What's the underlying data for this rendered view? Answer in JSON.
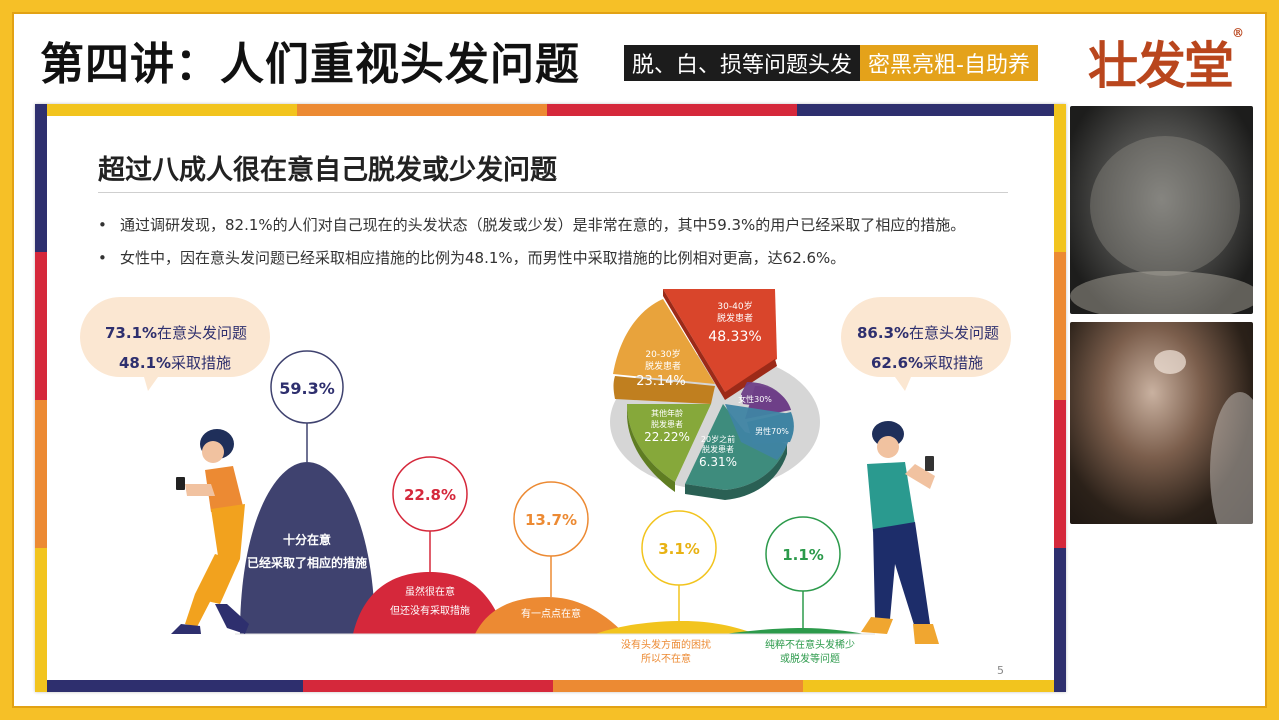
{
  "header": {
    "title": "第四讲：人们重视头发问题",
    "banner_left": "脱、白、损等问题头发",
    "banner_right": "密黑亮粗-自助养",
    "brand": "壮发堂",
    "brand_mark": "®"
  },
  "slide": {
    "title": "超过八成人很在意自己脱发或少发问题",
    "bullets": [
      "通过调研发现，82.1%的人们对自己现在的头发状态（脱发或少发）是非常在意的，其中59.3%的用户已经采取了相应的措施。",
      "女性中，因在意头发问题已经采取相应措施的比例为48.1%，而男性中采取措施的比例相对更高，达62.6%。"
    ],
    "bullet_mark": "•",
    "page_number": "5",
    "female_callout": {
      "line1_value": "73.1%",
      "line1_text": "在意头发问题",
      "line2_value": "48.1%",
      "line2_text": "采取措施"
    },
    "male_callout": {
      "line1_value": "86.3%",
      "line1_text": "在意头发问题",
      "line2_value": "62.6%",
      "line2_text": "采取措施"
    },
    "mounds": [
      {
        "value": "59.3%",
        "label1": "十分在意",
        "label2": "已经采取了相应的措施",
        "color": "#3f426f"
      },
      {
        "value": "22.8%",
        "label1": "虽然很在意",
        "label2": "但还没有采取措施",
        "color": "#d5283b"
      },
      {
        "value": "13.7%",
        "label1": "有一点点在意",
        "label2": "",
        "color": "#ec8a33"
      },
      {
        "value": "3.1%",
        "label1": "没有头发方面的困扰",
        "label2": "所以不在意",
        "color": "#f2c41e"
      },
      {
        "value": "1.1%",
        "label1": "纯粹不在意头发稀少",
        "label2": "或脱发等问题",
        "color": "#2c9a4b"
      }
    ],
    "pie": [
      {
        "line1": "30-40岁",
        "line2": "脱发患者",
        "value": "48.33%",
        "color": "#d9452b"
      },
      {
        "line1": "20-30岁",
        "line2": "脱发患者",
        "value": "23.14%",
        "color": "#e8a33c"
      },
      {
        "line1": "其他年龄",
        "line2": "脱发患者",
        "value": "22.22%",
        "color": "#86a83a"
      },
      {
        "line1": "20岁之前",
        "line2": "脱发患者",
        "value": "6.31%",
        "color": "#3e8c7d"
      },
      {
        "line1": "男性70%",
        "line2": "",
        "value": "",
        "color": "#3f84a3"
      },
      {
        "line1": "女性30%",
        "line2": "",
        "value": "",
        "color": "#6e3f88"
      }
    ]
  },
  "colors": {
    "accent_gold": "#f6c027",
    "navy": "#2e2f6e",
    "red": "#d5283b",
    "orange": "#ec8a33"
  }
}
